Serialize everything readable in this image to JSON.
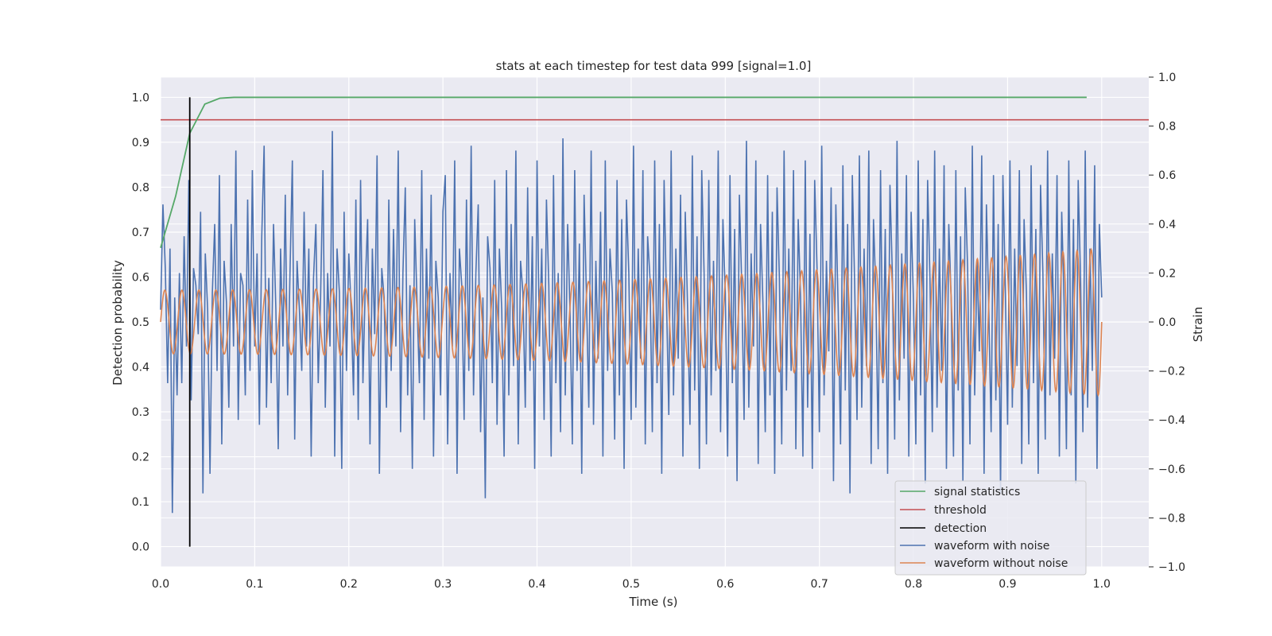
{
  "chart_data": {
    "type": "line",
    "title": "stats at each timestep for test data 999 [signal=1.0]",
    "xlabel": "Time (s)",
    "ylabel": "Detection probability",
    "ylabel_right": "Strain",
    "xlim": [
      0.0,
      1.05
    ],
    "ylim": [
      -0.045,
      1.045
    ],
    "ylim_right": [
      -1.0,
      1.0
    ],
    "grid": true,
    "legend_position": "lower-right",
    "x_ticks": [
      0.0,
      0.1,
      0.2,
      0.3,
      0.4,
      0.5,
      0.6,
      0.7,
      0.8,
      0.9,
      1.0
    ],
    "x_tick_labels": [
      "0.0",
      "0.1",
      "0.2",
      "0.3",
      "0.4",
      "0.5",
      "0.6",
      "0.7",
      "0.8",
      "0.9",
      "1.0"
    ],
    "y_ticks": [
      0.0,
      0.1,
      0.2,
      0.3,
      0.4,
      0.5,
      0.6,
      0.7,
      0.8,
      0.9,
      1.0
    ],
    "y_tick_labels": [
      "0.0",
      "0.1",
      "0.2",
      "0.3",
      "0.4",
      "0.5",
      "0.6",
      "0.7",
      "0.8",
      "0.9",
      "1.0"
    ],
    "y2_ticks": [
      -1.0,
      -0.8,
      -0.6,
      -0.4,
      -0.2,
      0.0,
      0.2,
      0.4,
      0.6,
      0.8,
      1.0
    ],
    "y2_tick_labels": [
      "−1.0",
      "−0.8",
      "−0.6",
      "−0.4",
      "−0.2",
      "0.0",
      "0.2",
      "0.4",
      "0.6",
      "0.8",
      "1.0"
    ],
    "colors": {
      "background": "#eaeaf2",
      "grid": "#ffffff",
      "signal_statistics": "#55a868",
      "threshold": "#c44e52",
      "detection": "#000000",
      "waveform_noise": "#4c72b0",
      "waveform_clean": "#dd8452"
    },
    "series": [
      {
        "name": "signal statistics",
        "axis": "left",
        "x": [
          0.0,
          0.016,
          0.031,
          0.047,
          0.063,
          0.078,
          0.094,
          0.2,
          0.4,
          0.6,
          0.8,
          0.984
        ],
        "y": [
          0.665,
          0.78,
          0.92,
          0.985,
          0.998,
          1.0,
          1.0,
          1.0,
          1.0,
          1.0,
          1.0,
          1.0
        ]
      },
      {
        "name": "threshold",
        "axis": "left",
        "x": [
          0.0,
          1.05
        ],
        "y": [
          0.95,
          0.95
        ]
      },
      {
        "name": "detection",
        "axis": "left",
        "x": [
          0.031,
          0.031
        ],
        "y": [
          0.0,
          1.0
        ]
      },
      {
        "name": "waveform with noise",
        "axis": "right",
        "x_start": 0.0,
        "x_end": 1.0,
        "y": [
          0.05,
          0.48,
          0.22,
          -0.25,
          0.3,
          -0.78,
          0.1,
          -0.3,
          0.2,
          -0.25,
          0.35,
          -0.1,
          0.58,
          -0.32,
          0.22,
          0.15,
          -0.05,
          0.45,
          -0.7,
          0.28,
          0.05,
          -0.62,
          0.12,
          0.4,
          -0.2,
          0.6,
          -0.5,
          0.25,
          0.08,
          -0.35,
          0.4,
          -0.1,
          0.7,
          -0.4,
          0.2,
          0.15,
          -0.3,
          0.5,
          -0.2,
          0.62,
          -0.1,
          0.28,
          -0.42,
          0.35,
          0.72,
          -0.35,
          0.18,
          -0.25,
          0.4,
          0.05,
          -0.52,
          0.3,
          -0.1,
          0.52,
          -0.3,
          0.2,
          0.66,
          -0.48,
          0.25,
          0.05,
          -0.2,
          0.45,
          -0.1,
          0.3,
          -0.55,
          0.18,
          0.4,
          -0.25,
          0.1,
          0.62,
          -0.35,
          0.2,
          -0.1,
          0.78,
          -0.55,
          0.3,
          0.12,
          -0.6,
          0.45,
          -0.2,
          0.28,
          0.05,
          -0.3,
          0.5,
          -0.4,
          0.58,
          -0.25,
          0.15,
          0.42,
          -0.5,
          0.3,
          -0.05,
          0.68,
          -0.62,
          0.22,
          0.1,
          -0.35,
          0.5,
          -0.2,
          0.38,
          -0.1,
          0.7,
          -0.45,
          0.2,
          0.55,
          -0.3,
          0.15,
          -0.6,
          0.42,
          0.08,
          -0.25,
          0.62,
          -0.4,
          0.3,
          -0.15,
          0.52,
          -0.55,
          0.25,
          0.1,
          -0.3,
          0.45,
          0.6,
          -0.5,
          0.2,
          -0.1,
          0.66,
          -0.62,
          0.3,
          0.15,
          -0.4,
          0.5,
          -0.2,
          0.72,
          -0.3,
          0.2,
          0.48,
          -0.45,
          0.1,
          -0.72,
          0.35,
          0.22,
          -0.25,
          0.58,
          -0.42,
          0.3,
          0.05,
          -0.55,
          0.62,
          -0.3,
          0.4,
          -0.18,
          0.7,
          -0.5,
          0.25,
          0.12,
          -0.35,
          0.55,
          -0.2,
          0.35,
          -0.6,
          0.66,
          -0.1,
          0.3,
          -0.4,
          0.5,
          0.15,
          -0.55,
          0.6,
          -0.25,
          0.2,
          -0.45,
          0.75,
          -0.3,
          0.4,
          0.05,
          -0.5,
          0.62,
          -0.2,
          0.32,
          -0.62,
          0.52,
          0.1,
          -0.35,
          0.7,
          -0.42,
          0.25,
          -0.15,
          0.45,
          -0.55,
          0.66,
          -0.2,
          0.3,
          0.12,
          -0.48,
          0.58,
          -0.3,
          0.42,
          -0.6,
          0.5,
          0.2,
          -0.4,
          0.72,
          -0.35,
          0.3,
          -0.15,
          0.62,
          -0.5,
          0.35,
          0.18,
          -0.45,
          0.66,
          -0.25,
          0.4,
          -0.62,
          0.58,
          0.1,
          -0.38,
          0.7,
          -0.3,
          0.3,
          -0.15,
          0.52,
          -0.55,
          0.45,
          0.05,
          -0.42,
          0.68,
          -0.28,
          0.35,
          -0.6,
          0.62,
          0.2,
          -0.5,
          0.58,
          -0.3,
          0.25,
          -0.2,
          0.7,
          -0.45,
          0.42,
          0.12,
          -0.55,
          0.6,
          -0.25,
          0.38,
          -0.65,
          0.52,
          0.15,
          -0.4,
          0.74,
          -0.35,
          0.28,
          -0.1,
          0.66,
          -0.58,
          0.4,
          0.08,
          -0.45,
          0.6,
          -0.3,
          0.45,
          -0.62,
          0.55,
          0.18,
          -0.5,
          0.7,
          -0.28,
          0.3,
          -0.2,
          0.62,
          -0.52,
          0.42,
          0.1,
          -0.55,
          0.66,
          -0.35,
          0.36,
          -0.6,
          0.58,
          0.22,
          -0.45,
          0.72,
          -0.3,
          0.25,
          -0.12,
          0.55,
          -0.65,
          0.48,
          0.05,
          -0.5,
          0.64,
          -0.28,
          0.4,
          -0.7,
          0.6,
          0.15,
          -0.4,
          0.68,
          -0.35,
          0.3,
          -0.18,
          0.7,
          -0.58,
          0.42,
          0.12,
          -0.52,
          0.62,
          -0.25,
          0.38,
          -0.62,
          0.56,
          0.2,
          -0.48,
          0.74,
          -0.32,
          0.28,
          -0.15,
          0.6,
          -0.55,
          0.45,
          0.08,
          -0.5,
          0.66,
          -0.3,
          0.42,
          -0.66,
          0.58,
          0.18,
          -0.45,
          0.7,
          -0.35,
          0.3,
          -0.2,
          0.64,
          -0.6,
          0.4,
          0.1,
          -0.55,
          0.62,
          -0.28,
          0.35,
          -0.65,
          0.55,
          0.22,
          -0.5,
          0.72,
          -0.3,
          0.25,
          -0.12,
          0.68,
          -0.62,
          0.48,
          0.05,
          -0.45,
          0.6,
          -0.32,
          0.4,
          -0.7,
          0.6,
          0.15,
          -0.42,
          0.66,
          -0.35,
          0.3,
          -0.18,
          0.62,
          -0.58,
          0.42,
          0.12,
          -0.5,
          0.64,
          -0.25,
          0.38,
          -0.62,
          0.56,
          0.2,
          -0.48,
          0.7,
          -0.3,
          0.28,
          -0.15,
          0.6,
          -0.55,
          0.45,
          0.08,
          -0.52,
          0.66,
          -0.3,
          0.42,
          -0.66,
          0.58,
          0.18,
          -0.45,
          0.7,
          -0.35,
          0.3,
          -0.2,
          0.64,
          -0.6,
          0.4,
          0.1
        ],
        "y_dense": "synthesized from listed samples"
      },
      {
        "name": "waveform without noise",
        "axis": "right",
        "x_start": 0.0,
        "x_end": 1.0,
        "amplitude_start": 0.13,
        "amplitude_end": 0.3,
        "cycles": 55
      }
    ]
  }
}
